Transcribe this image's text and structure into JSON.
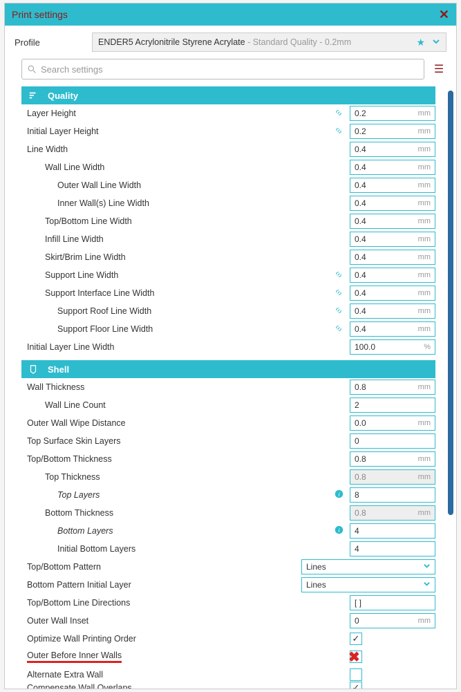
{
  "window": {
    "title": "Print settings"
  },
  "profile": {
    "label": "Profile",
    "name": "ENDER5 Acrylonitrile Styrene Acrylate",
    "suffix": " - Standard Quality - 0.2mm"
  },
  "search": {
    "placeholder": "Search settings"
  },
  "sections": {
    "quality": {
      "title": "Quality",
      "rows": [
        {
          "label": "Layer Height",
          "indent": 0,
          "link": true,
          "value": "0.2",
          "unit": "mm"
        },
        {
          "label": "Initial Layer Height",
          "indent": 0,
          "link": true,
          "value": "0.2",
          "unit": "mm"
        },
        {
          "label": "Line Width",
          "indent": 0,
          "value": "0.4",
          "unit": "mm"
        },
        {
          "label": "Wall Line Width",
          "indent": 1,
          "value": "0.4",
          "unit": "mm"
        },
        {
          "label": "Outer Wall Line Width",
          "indent": 2,
          "value": "0.4",
          "unit": "mm"
        },
        {
          "label": "Inner Wall(s) Line Width",
          "indent": 2,
          "value": "0.4",
          "unit": "mm"
        },
        {
          "label": "Top/Bottom Line Width",
          "indent": 1,
          "value": "0.4",
          "unit": "mm"
        },
        {
          "label": "Infill Line Width",
          "indent": 1,
          "value": "0.4",
          "unit": "mm"
        },
        {
          "label": "Skirt/Brim Line Width",
          "indent": 1,
          "value": "0.4",
          "unit": "mm"
        },
        {
          "label": "Support Line Width",
          "indent": 1,
          "link": true,
          "value": "0.4",
          "unit": "mm"
        },
        {
          "label": "Support Interface Line Width",
          "indent": 1,
          "link": true,
          "value": "0.4",
          "unit": "mm"
        },
        {
          "label": "Support Roof Line Width",
          "indent": 2,
          "link": true,
          "value": "0.4",
          "unit": "mm"
        },
        {
          "label": "Support Floor Line Width",
          "indent": 2,
          "link": true,
          "value": "0.4",
          "unit": "mm"
        },
        {
          "label": "Initial Layer Line Width",
          "indent": 0,
          "value": "100.0",
          "unit": "%"
        }
      ]
    },
    "shell": {
      "title": "Shell",
      "rows": [
        {
          "label": "Wall Thickness",
          "indent": 0,
          "value": "0.8",
          "unit": "mm"
        },
        {
          "label": "Wall Line Count",
          "indent": 1,
          "value": "2",
          "unit": ""
        },
        {
          "label": "Outer Wall Wipe Distance",
          "indent": 0,
          "value": "0.0",
          "unit": "mm"
        },
        {
          "label": "Top Surface Skin Layers",
          "indent": 0,
          "value": "0",
          "unit": ""
        },
        {
          "label": "Top/Bottom Thickness",
          "indent": 0,
          "value": "0.8",
          "unit": "mm"
        },
        {
          "label": "Top Thickness",
          "indent": 1,
          "value": "0.8",
          "unit": "mm",
          "greyed": true
        },
        {
          "label": "Top Layers",
          "indent": 2,
          "italic": true,
          "info": true,
          "value": "8",
          "unit": ""
        },
        {
          "label": "Bottom Thickness",
          "indent": 1,
          "value": "0.8",
          "unit": "mm",
          "greyed": true
        },
        {
          "label": "Bottom Layers",
          "indent": 2,
          "italic": true,
          "info": true,
          "value": "4",
          "unit": ""
        },
        {
          "label": "Initial Bottom Layers",
          "indent": 2,
          "value": "4",
          "unit": ""
        },
        {
          "label": "Top/Bottom Pattern",
          "indent": 0,
          "type": "select",
          "value": "Lines"
        },
        {
          "label": "Bottom Pattern Initial Layer",
          "indent": 0,
          "type": "select",
          "value": "Lines"
        },
        {
          "label": "Top/Bottom Line Directions",
          "indent": 0,
          "type": "plain",
          "value": "[ ]"
        },
        {
          "label": "Outer Wall Inset",
          "indent": 0,
          "value": "0",
          "unit": "mm"
        },
        {
          "label": "Optimize Wall Printing Order",
          "indent": 0,
          "type": "checkbox",
          "checked": true
        },
        {
          "label": "Outer Before Inner Walls",
          "indent": 0,
          "type": "checkbox",
          "checked": false,
          "redx": true,
          "redline": true
        },
        {
          "label": "Alternate Extra Wall",
          "indent": 0,
          "type": "checkbox",
          "checked": false
        },
        {
          "label": "Compensate Wall Overlaps",
          "indent": 0,
          "type": "checkbox",
          "checked": true,
          "cut": true
        }
      ]
    }
  },
  "colors": {
    "accent": "#2EBBCE",
    "title_text": "#8B1A1A",
    "scrollbar": "#2a6aa0",
    "red_mark": "#d22"
  }
}
